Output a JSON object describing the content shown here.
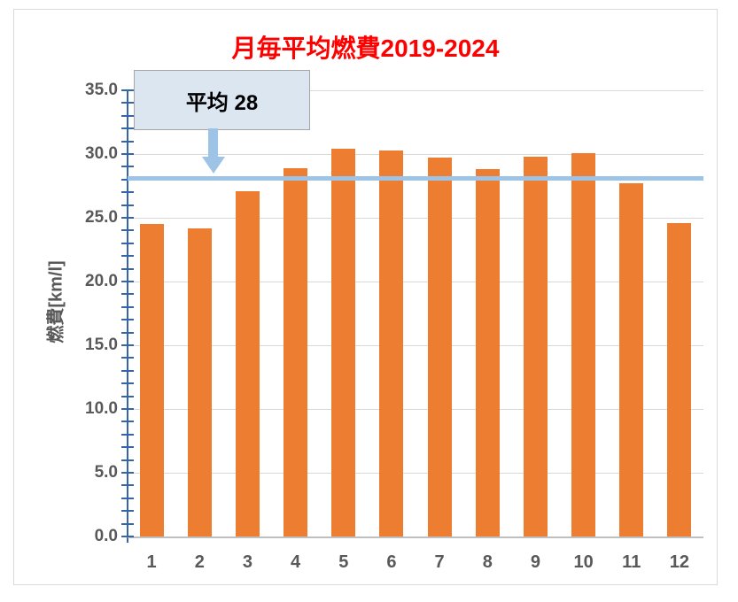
{
  "chart_data": {
    "type": "bar",
    "title": "月毎平均燃費2019-2024",
    "categories": [
      "1",
      "2",
      "3",
      "4",
      "5",
      "6",
      "7",
      "8",
      "9",
      "10",
      "11",
      "12"
    ],
    "values": [
      24.5,
      24.2,
      27.1,
      28.9,
      30.4,
      30.3,
      29.7,
      28.8,
      29.8,
      30.1,
      27.7,
      24.6
    ],
    "xlabel": "",
    "ylabel": "燃費[km/l]",
    "ylim": [
      0,
      35
    ],
    "ytick_step": 5,
    "minor_tick_step": 1,
    "ytick_decimals": 1,
    "grid": true,
    "legend": "none",
    "average_line": {
      "value": 28.1,
      "label": "平均 28"
    },
    "colors": {
      "bar": "#ED7D31",
      "average_line": "#9DC3E6",
      "title": "#FF0000",
      "axis": "#3565A8",
      "gridline": "#D9D9D9",
      "tick_label": "#595959",
      "annotation_fill": "#DCE6F1",
      "annotation_border": "#A6A6A6"
    }
  }
}
